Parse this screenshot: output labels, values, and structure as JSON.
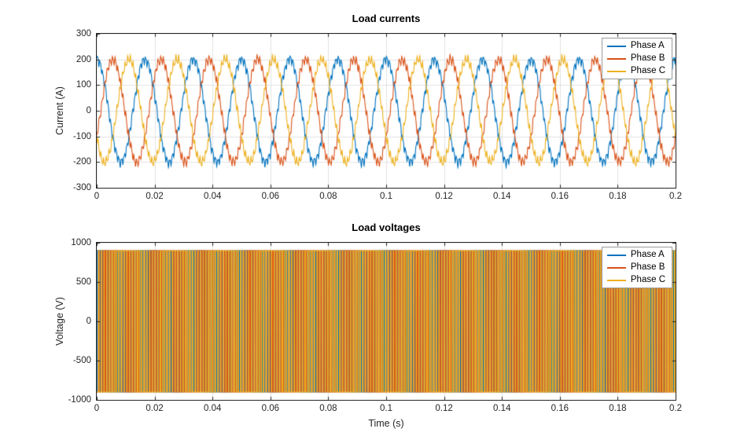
{
  "figure": {
    "background": "#ffffff",
    "axis_color": "#262626",
    "grid_color": "#e2e2e2"
  },
  "chart_data": [
    {
      "type": "line",
      "title": "Load currents",
      "xlabel": "",
      "ylabel": "Current (A)",
      "xlim": [
        0,
        0.2
      ],
      "ylim": [
        -300,
        300
      ],
      "xticks": [
        0,
        0.02,
        0.04,
        0.06,
        0.08,
        0.1,
        0.12,
        0.14,
        0.16,
        0.18,
        0.2
      ],
      "xtick_labels": [
        "0",
        "0.02",
        "0.04",
        "0.06",
        "0.08",
        "0.1",
        "0.12",
        "0.14",
        "0.16",
        "0.18",
        "0.2"
      ],
      "yticks": [
        -300,
        -200,
        -100,
        0,
        100,
        200,
        300
      ],
      "ytick_labels": [
        "-300",
        "-200",
        "-100",
        "0",
        "100",
        "200",
        "300"
      ],
      "grid": true,
      "legend_position": "top-right",
      "waveform": "three_phase_sine_with_switching_ripple",
      "fundamental_hz": 60,
      "series": [
        {
          "name": "Phase A",
          "color": "#0072BD",
          "amplitude_a": 200,
          "phase_deg": 0,
          "ripple_a": 22
        },
        {
          "name": "Phase B",
          "color": "#D95319",
          "amplitude_a": 200,
          "phase_deg": -120,
          "ripple_a": 22
        },
        {
          "name": "Phase C",
          "color": "#EDB120",
          "amplitude_a": 200,
          "phase_deg": -240,
          "ripple_a": 22
        }
      ]
    },
    {
      "type": "line",
      "title": "Load voltages",
      "xlabel": "Time (s)",
      "ylabel": "Voltage (V)",
      "xlim": [
        0,
        0.2
      ],
      "ylim": [
        -1000,
        1000
      ],
      "xticks": [
        0,
        0.02,
        0.04,
        0.06,
        0.08,
        0.1,
        0.12,
        0.14,
        0.16,
        0.18,
        0.2
      ],
      "xtick_labels": [
        "0",
        "0.02",
        "0.04",
        "0.06",
        "0.08",
        "0.1",
        "0.12",
        "0.14",
        "0.16",
        "0.18",
        "0.2"
      ],
      "yticks": [
        -1000,
        -500,
        0,
        500,
        1000
      ],
      "ytick_labels": [
        "-1000",
        "-500",
        "0",
        "500",
        "1000"
      ],
      "grid": true,
      "legend_position": "top-right",
      "waveform": "three_phase_pwm_square",
      "fundamental_hz": 60,
      "carrier_hz": 1080,
      "modulation_index": 0.8,
      "series": [
        {
          "name": "Phase A",
          "color": "#0072BD",
          "amplitude_v": 900,
          "phase_deg": 0
        },
        {
          "name": "Phase B",
          "color": "#D95319",
          "amplitude_v": 900,
          "phase_deg": -120
        },
        {
          "name": "Phase C",
          "color": "#EDB120",
          "amplitude_v": 900,
          "phase_deg": -240
        }
      ]
    }
  ]
}
